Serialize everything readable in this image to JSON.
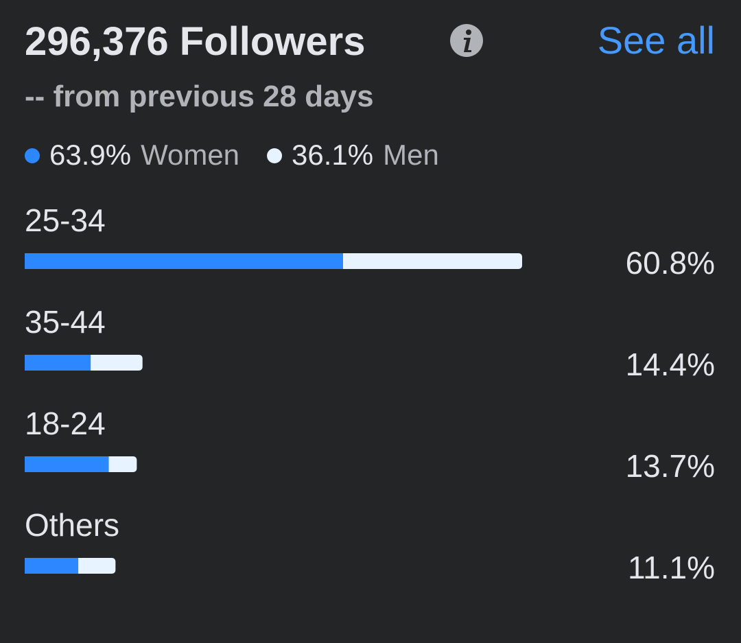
{
  "header": {
    "title": "296,376 Followers",
    "subtitle": "-- from previous 28 days",
    "link": "See all"
  },
  "gender": [
    {
      "value": 63.9,
      "value_label": "63.9%",
      "name": "Women",
      "color": "#2d88ff"
    },
    {
      "value": 36.1,
      "value_label": "36.1%",
      "name": "Men",
      "color": "#e7f3ff"
    }
  ],
  "age_groups": [
    {
      "label": "25-34",
      "value": 60.8,
      "value_label": "60.8%",
      "women_share": 64
    },
    {
      "label": "35-44",
      "value": 14.4,
      "value_label": "14.4%",
      "women_share": 56
    },
    {
      "label": "18-24",
      "value": 13.7,
      "value_label": "13.7%",
      "women_share": 75
    },
    {
      "label": "Others",
      "value": 11.1,
      "value_label": "11.1%",
      "women_share": 59
    }
  ]
}
